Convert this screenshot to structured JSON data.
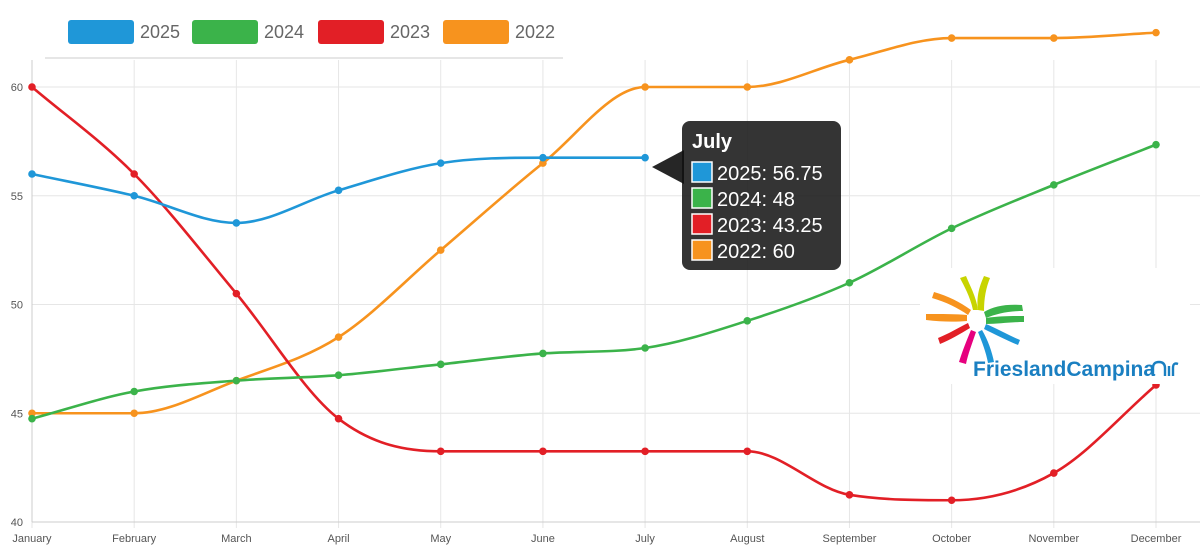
{
  "chart_data": {
    "type": "line",
    "categories": [
      "January",
      "February",
      "March",
      "April",
      "May",
      "June",
      "July",
      "August",
      "September",
      "October",
      "November",
      "December"
    ],
    "series": [
      {
        "name": "2025",
        "color": "#1f97d8",
        "values": [
          56,
          55,
          53.75,
          55.25,
          56.5,
          56.75,
          56.75,
          null,
          null,
          null,
          null,
          null
        ]
      },
      {
        "name": "2024",
        "color": "#3bb34a",
        "values": [
          44.75,
          46,
          46.5,
          46.75,
          47.25,
          47.75,
          48,
          49.25,
          51,
          53.5,
          55.5,
          57.35
        ]
      },
      {
        "name": "2023",
        "color": "#e21f26",
        "values": [
          60,
          56,
          50.5,
          44.75,
          43.25,
          43.25,
          43.25,
          43.25,
          41.25,
          41,
          42.25,
          46.3
        ]
      },
      {
        "name": "2022",
        "color": "#f7931e",
        "values": [
          45,
          45,
          46.5,
          48.5,
          52.5,
          56.5,
          60,
          60,
          61.25,
          62.25,
          62.25,
          62.5
        ]
      }
    ],
    "ylim": [
      40,
      64
    ],
    "yticks": [
      40,
      45,
      50,
      55,
      60
    ],
    "grid": true,
    "legend_position": "top-left",
    "tooltip": {
      "title": "July",
      "items": [
        {
          "label": "2025: 56.75",
          "color": "#1f97d8"
        },
        {
          "label": "2024: 48",
          "color": "#3bb34a"
        },
        {
          "label": "2023: 43.25",
          "color": "#e21f26"
        },
        {
          "label": "2022: 60",
          "color": "#f7931e"
        }
      ]
    }
  },
  "logo": {
    "text": "FrieslandCampina",
    "colors": [
      "#f7931e",
      "#e21f26",
      "#e6007e",
      "#1f97d8",
      "#3bb34a",
      "#c8d400",
      "#0083c8"
    ]
  }
}
